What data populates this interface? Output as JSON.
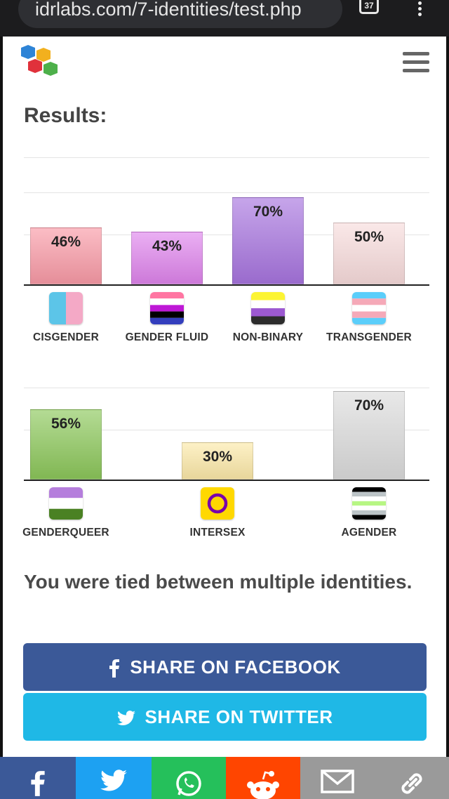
{
  "browser": {
    "url": "idrlabs.com/7-identities/test.php",
    "tab_count": "37"
  },
  "page": {
    "title": "Results:",
    "tied_message": "You were tied between multiple identities."
  },
  "chart_data": [
    {
      "type": "bar",
      "categories": [
        "CISGENDER",
        "GENDER FLUID",
        "NON-BINARY",
        "TRANSGENDER"
      ],
      "values": [
        46,
        43,
        70,
        50
      ],
      "value_labels": [
        "46%",
        "43%",
        "70%",
        "50%"
      ],
      "colors": [
        "#f99aa6",
        "#df84ec",
        "#a774df",
        "#f8dcdc"
      ],
      "ylim": [
        0,
        100
      ]
    },
    {
      "type": "bar",
      "categories": [
        "GENDERQUEER",
        "INTERSEX",
        "AGENDER"
      ],
      "values": [
        56,
        30,
        70
      ],
      "value_labels": [
        "56%",
        "30%",
        "70%"
      ],
      "colors": [
        "#8cc75a",
        "#fce9a8",
        "#dcdcdc"
      ],
      "ylim": [
        0,
        100
      ]
    }
  ],
  "share": {
    "facebook_label": "SHARE ON FACEBOOK",
    "twitter_label": "SHARE ON TWITTER"
  },
  "bottom_bar": {
    "icons": [
      "facebook-icon",
      "twitter-icon",
      "whatsapp-icon",
      "reddit-icon",
      "email-icon",
      "link-icon"
    ],
    "colors": [
      "#3b5998",
      "#1da1f2",
      "#25c05b",
      "#ff4500",
      "#9a9a9a",
      "#9a9a9a"
    ]
  }
}
